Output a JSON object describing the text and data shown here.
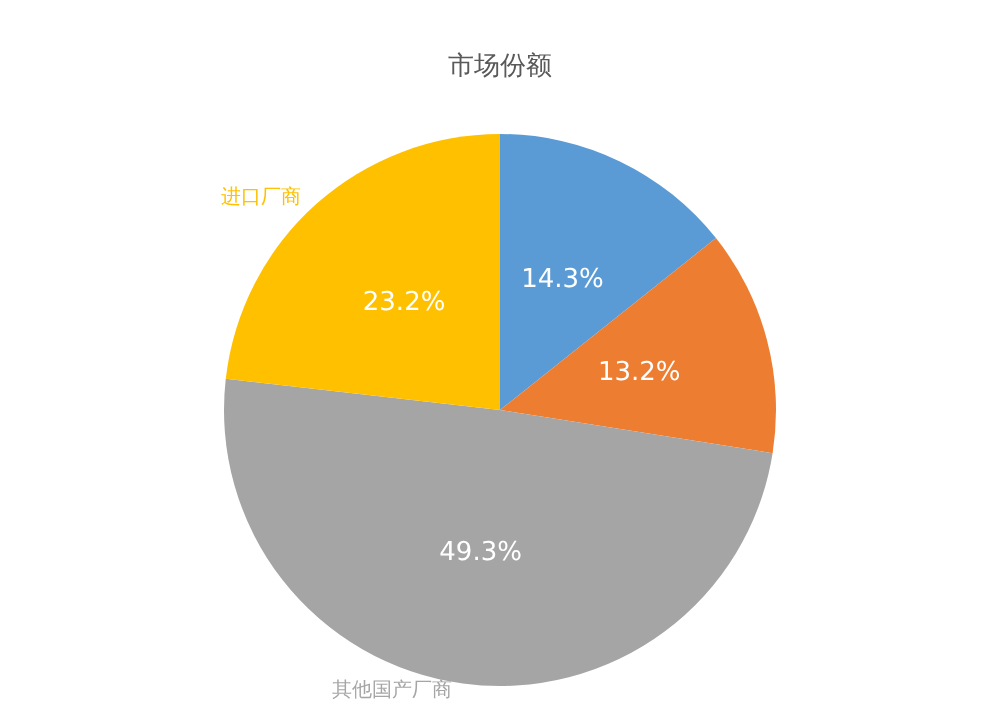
{
  "chart_data": {
    "type": "pie",
    "title": "市场份额",
    "categories": [
      null,
      null,
      "其他国产厂商",
      "进口厂商"
    ],
    "values": [
      14.3,
      13.2,
      49.3,
      23.2
    ],
    "colors": [
      "#5b9bd5",
      "#ed7d31",
      "#a5a5a5",
      "#ffc000"
    ],
    "value_labels": [
      "14.3%",
      "13.2%",
      "49.3%",
      "23.2%"
    ]
  }
}
